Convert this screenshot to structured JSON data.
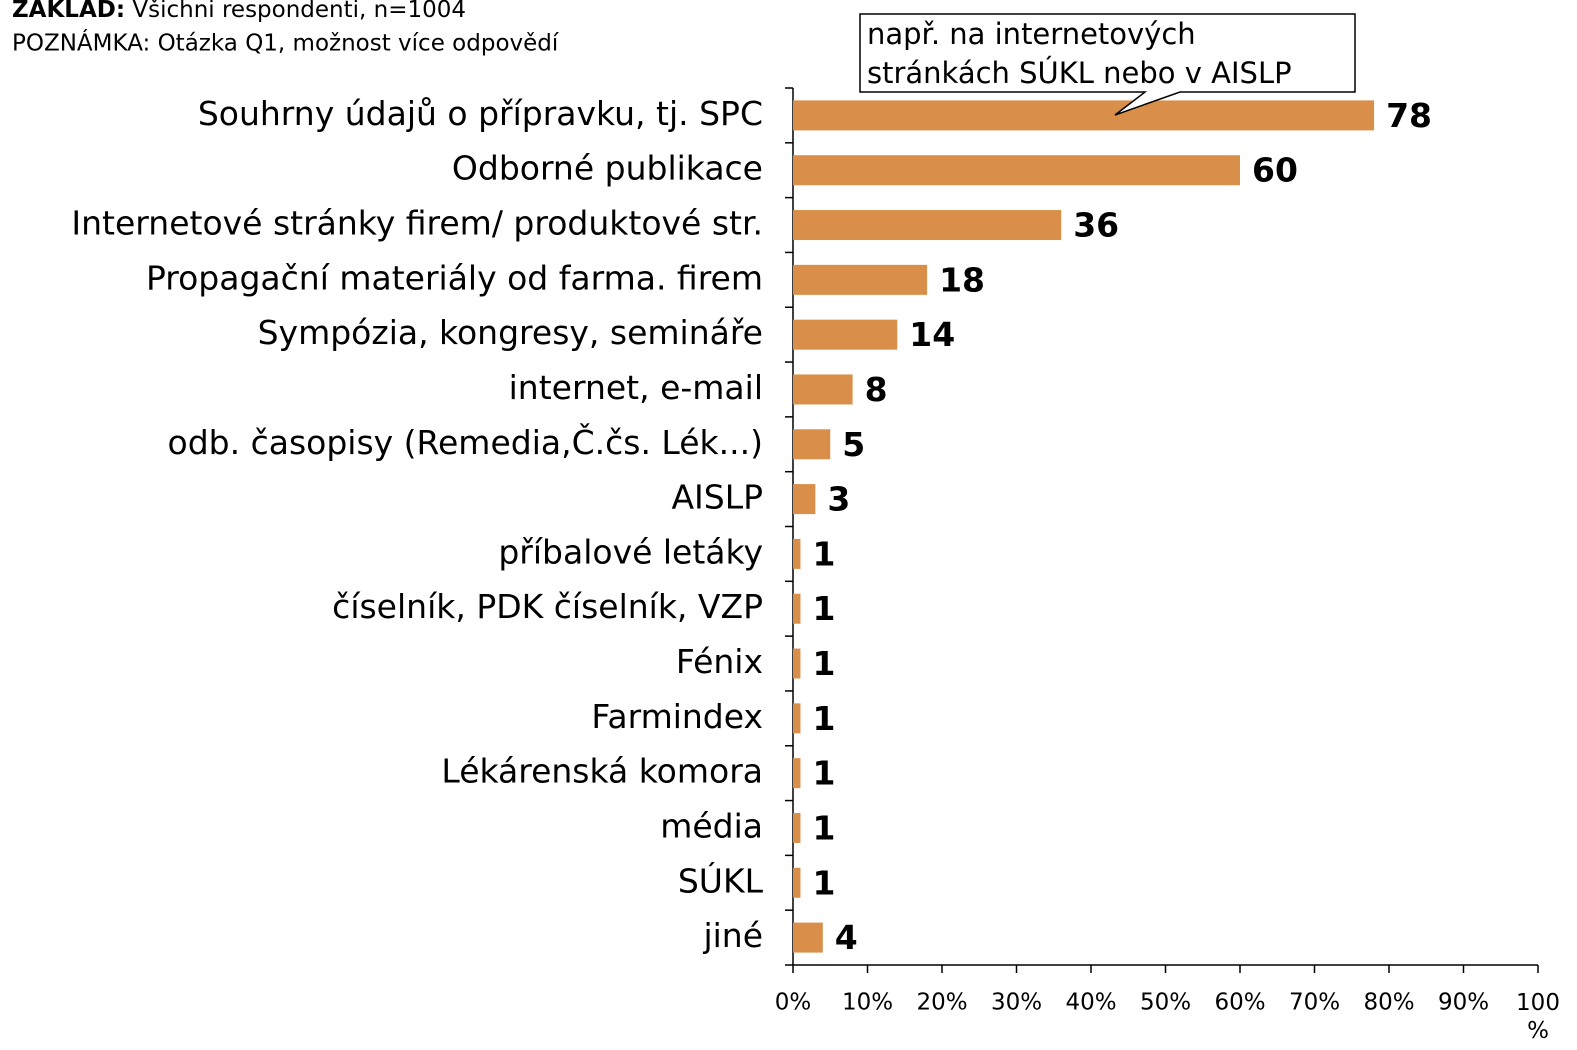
{
  "header": {
    "base_label": "ZÁKLAD:",
    "base_text": "Všichni respondenti, n=1004",
    "note": "POZNÁMKA: Otázka Q1, možnost více odpovědí"
  },
  "chart_data": {
    "type": "bar",
    "orientation": "horizontal",
    "categories": [
      "Souhrny údajů o přípravku, tj. SPC",
      "Odborné publikace",
      "Internetové stránky firem/ produktové str.",
      "Propagační materiály od farma. firem",
      "Sympózia, kongresy, semináře",
      "internet, e-mail",
      "odb. časopisy (Remedia,Č.čs. Lék...)",
      "AISLP",
      "příbalové letáky",
      "číselník, PDK číselník, VZP",
      "Fénix",
      "Farmindex",
      "Lékárenská komora",
      "média",
      "SÚKL",
      "jiné"
    ],
    "values": [
      78,
      60,
      36,
      18,
      14,
      8,
      5,
      3,
      1,
      1,
      1,
      1,
      1,
      1,
      1,
      4
    ],
    "color": "#d98f4a",
    "xlim": [
      0,
      100
    ],
    "xticks": [
      {
        "value": 0,
        "label": "0%"
      },
      {
        "value": 10,
        "label": "10%"
      },
      {
        "value": 20,
        "label": "20%"
      },
      {
        "value": 30,
        "label": "30%"
      },
      {
        "value": 40,
        "label": "40%"
      },
      {
        "value": 50,
        "label": "50%"
      },
      {
        "value": 60,
        "label": "60%"
      },
      {
        "value": 70,
        "label": "70%"
      },
      {
        "value": 80,
        "label": "80%"
      },
      {
        "value": 90,
        "label": "90%"
      },
      {
        "value": 100,
        "label": "100 %"
      }
    ],
    "annotation": [
      "např. na internetových",
      "stránkách SÚKL nebo v AISLP"
    ]
  }
}
